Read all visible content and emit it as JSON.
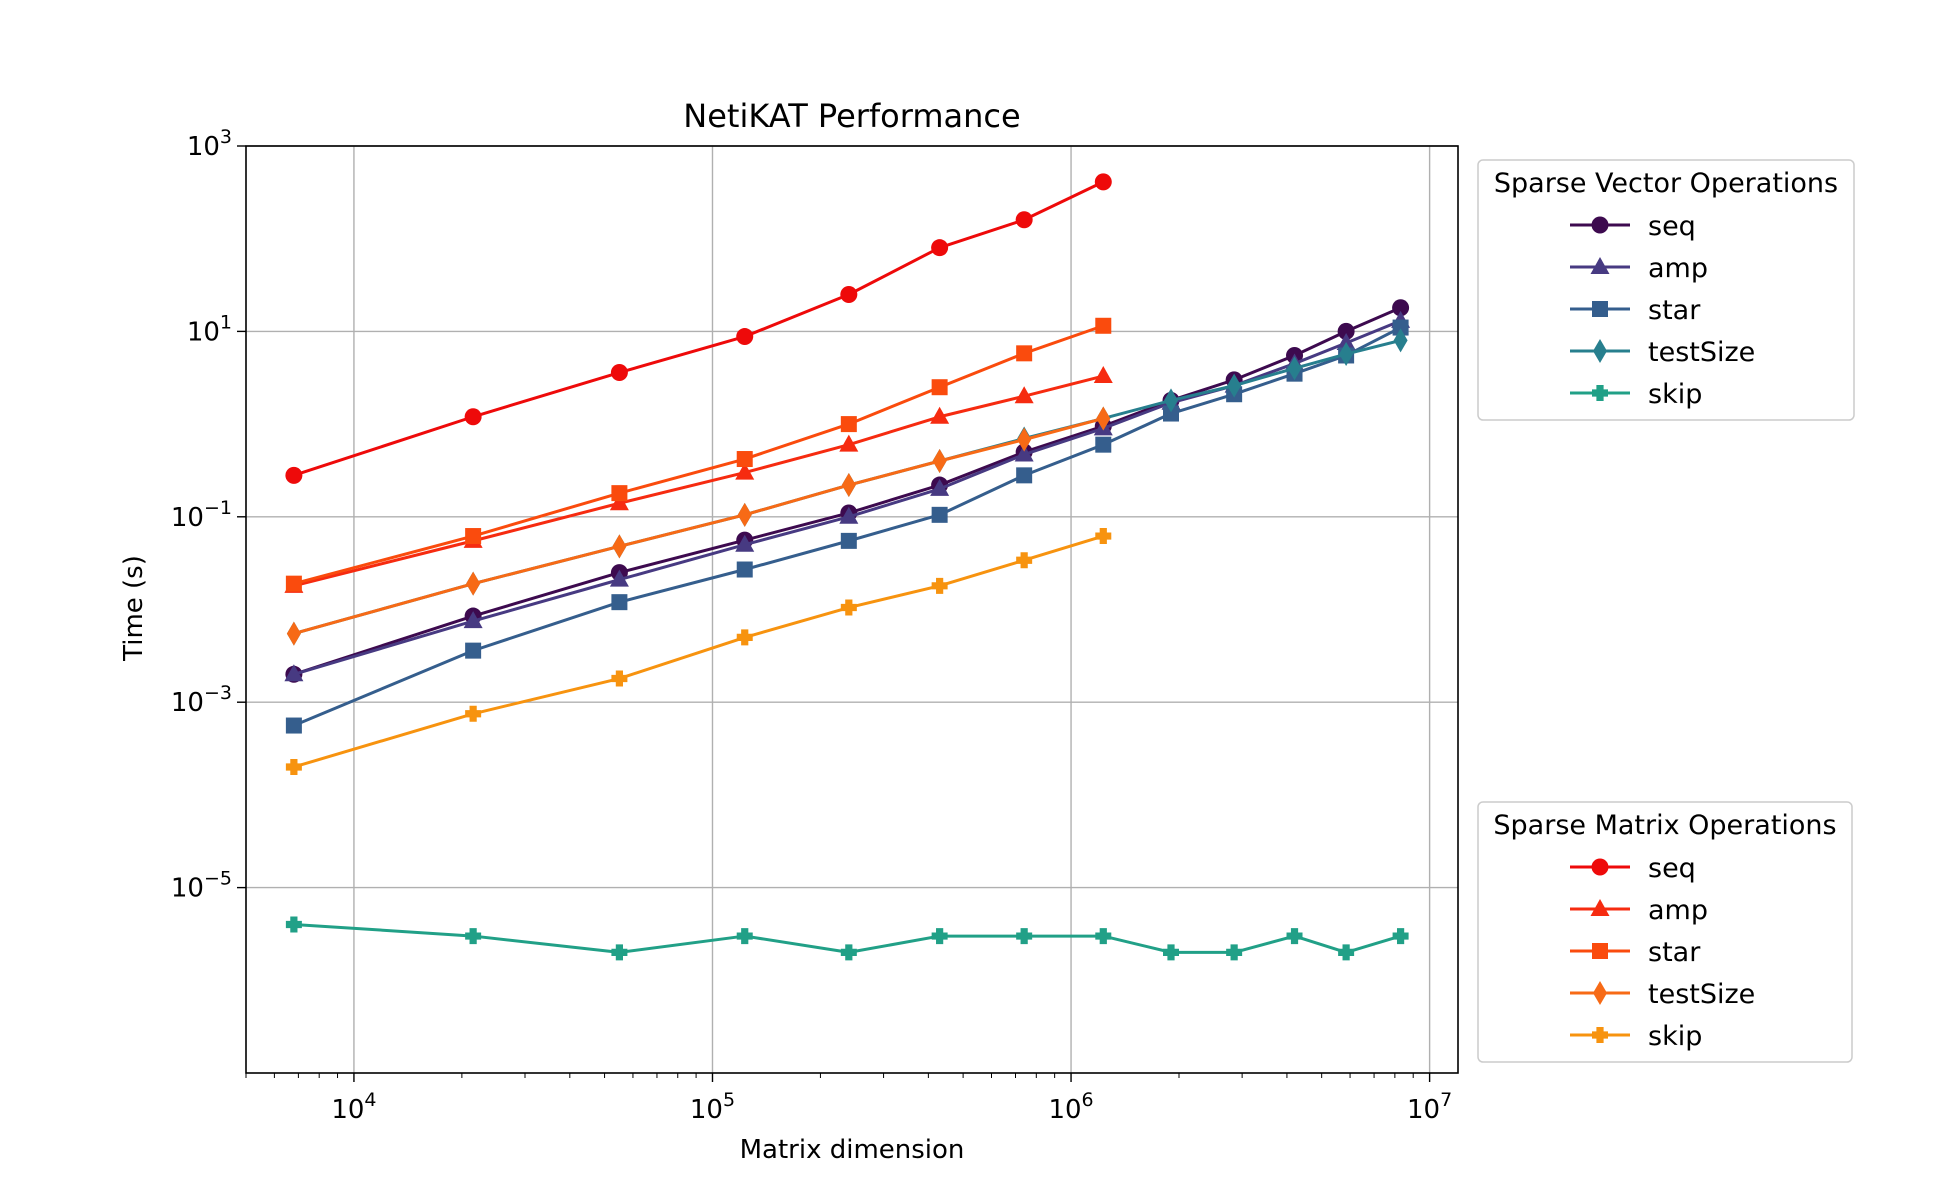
{
  "chart_data": {
    "type": "line",
    "title": "NetiKAT Performance",
    "xlabel": "Matrix dimension",
    "ylabel": "Time (s)",
    "xscale": "log",
    "yscale": "log",
    "xlim": [
      5000,
      12000000
    ],
    "ylim": [
      1e-07,
      1000
    ],
    "grid": true,
    "x_ticks": [
      {
        "base": "10",
        "exp": "4",
        "value": 10000
      },
      {
        "base": "10",
        "exp": "5",
        "value": 100000
      },
      {
        "base": "10",
        "exp": "6",
        "value": 1000000
      },
      {
        "base": "10",
        "exp": "7",
        "value": 10000000
      }
    ],
    "y_ticks": [
      {
        "base": "10",
        "exp": "3",
        "value": 1000
      },
      {
        "base": "10",
        "exp": "1",
        "value": 10
      },
      {
        "base": "10",
        "exp": "−1",
        "value": 0.1
      },
      {
        "base": "10",
        "exp": "−3",
        "value": 0.001
      },
      {
        "base": "10",
        "exp": "−5",
        "value": 1e-05
      }
    ],
    "legends": [
      {
        "title": "Sparse Vector Operations",
        "placement": "upper-right-outside",
        "series_indices": [
          0,
          1,
          2,
          3,
          4
        ]
      },
      {
        "title": "Sparse Matrix Operations",
        "placement": "lower-right-outside",
        "series_indices": [
          5,
          6,
          7,
          8,
          9
        ]
      }
    ],
    "series": [
      {
        "name": "seq",
        "group": "Sparse Vector Operations",
        "color": "#3d0a4f",
        "marker": "circle",
        "x": [
          6800,
          21500,
          55000,
          123000,
          240000,
          430000,
          740000,
          1230000,
          1900000,
          2850000,
          4200000,
          5850000,
          8300000
        ],
        "y": [
          0.002,
          0.0085,
          0.025,
          0.056,
          0.11,
          0.22,
          0.5,
          0.95,
          1.8,
          3.0,
          5.5,
          10,
          18
        ]
      },
      {
        "name": "amp",
        "group": "Sparse Vector Operations",
        "color": "#473a82",
        "marker": "triangle",
        "x": [
          6800,
          21500,
          55000,
          123000,
          240000,
          430000,
          740000,
          1230000,
          1900000,
          2850000,
          4200000,
          5850000,
          8300000
        ],
        "y": [
          0.002,
          0.0075,
          0.021,
          0.05,
          0.1,
          0.2,
          0.47,
          0.9,
          1.7,
          2.6,
          4.5,
          7.5,
          13
        ]
      },
      {
        "name": "star",
        "group": "Sparse Vector Operations",
        "color": "#355e8d",
        "marker": "square",
        "x": [
          6800,
          21500,
          55000,
          123000,
          240000,
          430000,
          740000,
          1230000,
          1900000,
          2850000,
          4200000,
          5850000,
          8300000
        ],
        "y": [
          0.00056,
          0.0036,
          0.012,
          0.027,
          0.055,
          0.105,
          0.28,
          0.6,
          1.3,
          2.1,
          3.5,
          5.5,
          11
        ]
      },
      {
        "name": "testSize",
        "group": "Sparse Vector Operations",
        "color": "#277f8e",
        "marker": "thin_diamond",
        "x": [
          6800,
          21500,
          55000,
          123000,
          240000,
          430000,
          740000,
          1230000,
          1900000,
          2850000,
          4200000,
          5850000,
          8300000
        ],
        "y": [
          0.0055,
          0.019,
          0.048,
          0.105,
          0.22,
          0.4,
          0.7,
          1.15,
          1.8,
          2.6,
          4.0,
          5.7,
          8
        ]
      },
      {
        "name": "skip",
        "group": "Sparse Vector Operations",
        "color": "#21a087",
        "marker": "plus_filled",
        "x": [
          6800,
          21500,
          55000,
          123000,
          240000,
          430000,
          740000,
          1230000,
          1900000,
          2850000,
          4200000,
          5850000,
          8300000
        ],
        "y": [
          4e-06,
          3e-06,
          2e-06,
          3e-06,
          2e-06,
          3e-06,
          3e-06,
          3e-06,
          2e-06,
          2e-06,
          3e-06,
          2e-06,
          3e-06
        ]
      },
      {
        "name": "seq",
        "group": "Sparse Matrix Operations",
        "color": "#ee0a0a",
        "marker": "circle",
        "x": [
          6800,
          21500,
          55000,
          123000,
          240000,
          430000,
          740000,
          1230000
        ],
        "y": [
          0.28,
          1.2,
          3.6,
          8.8,
          25,
          80,
          160,
          410
        ]
      },
      {
        "name": "amp",
        "group": "Sparse Matrix Operations",
        "color": "#f62b10",
        "marker": "triangle",
        "x": [
          6800,
          21500,
          55000,
          123000,
          240000,
          430000,
          740000,
          1230000
        ],
        "y": [
          0.018,
          0.055,
          0.14,
          0.3,
          0.6,
          1.2,
          2.0,
          3.3
        ]
      },
      {
        "name": "star",
        "group": "Sparse Matrix Operations",
        "color": "#fa4b0d",
        "marker": "square",
        "x": [
          6800,
          21500,
          55000,
          123000,
          240000,
          430000,
          740000,
          1230000
        ],
        "y": [
          0.019,
          0.062,
          0.18,
          0.42,
          1.0,
          2.5,
          5.8,
          11.5
        ]
      },
      {
        "name": "testSize",
        "group": "Sparse Matrix Operations",
        "color": "#f76a16",
        "marker": "thin_diamond",
        "x": [
          6800,
          21500,
          55000,
          123000,
          240000,
          430000,
          740000,
          1230000
        ],
        "y": [
          0.0055,
          0.019,
          0.048,
          0.105,
          0.22,
          0.4,
          0.68,
          1.15
        ]
      },
      {
        "name": "skip",
        "group": "Sparse Matrix Operations",
        "color": "#f7930f",
        "marker": "plus_filled",
        "x": [
          6800,
          21500,
          55000,
          123000,
          240000,
          430000,
          740000,
          1230000
        ],
        "y": [
          0.0002,
          0.00075,
          0.0018,
          0.005,
          0.0105,
          0.018,
          0.034,
          0.062
        ]
      }
    ]
  }
}
